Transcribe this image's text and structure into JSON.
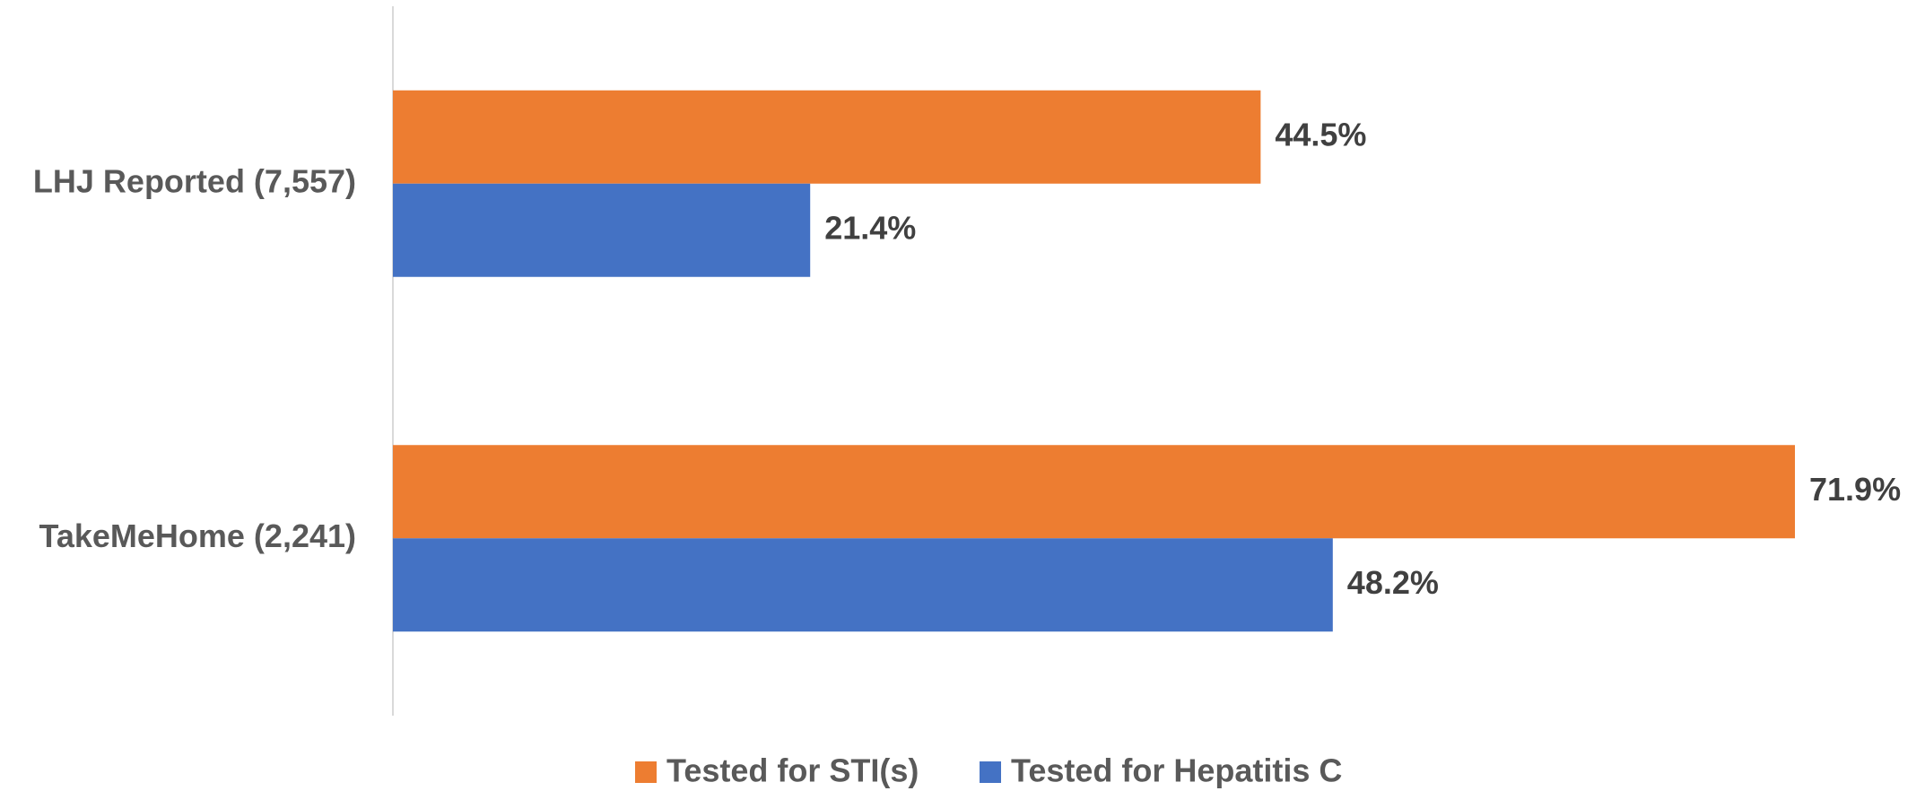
{
  "chart_data": {
    "type": "bar",
    "orientation": "horizontal",
    "categories": [
      "LHJ Reported (7,557)",
      "TakeMeHome (2,241)"
    ],
    "series": [
      {
        "name": "Tested for STI(s)",
        "color": "#ED7D31",
        "values": [
          44.5,
          71.9
        ],
        "value_labels": [
          "44.5%",
          "71.9%"
        ]
      },
      {
        "name": "Tested for Hepatitis C",
        "color": "#4472C4",
        "values": [
          21.4,
          48.2
        ],
        "value_labels": [
          "21.4%",
          "48.2%"
        ]
      }
    ],
    "legend": "bottom"
  }
}
